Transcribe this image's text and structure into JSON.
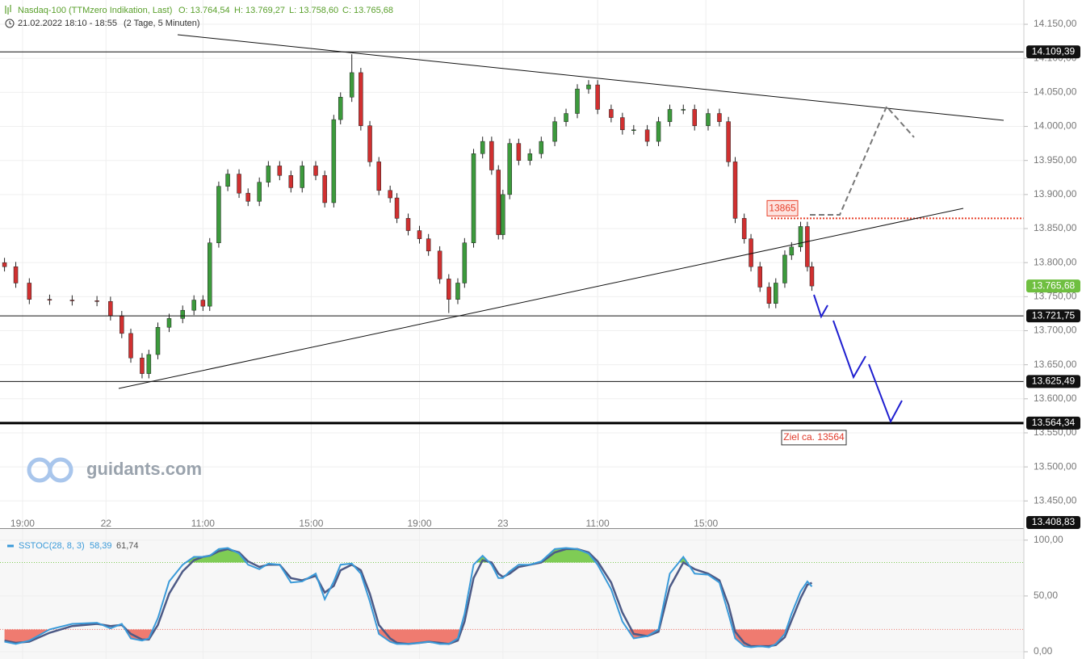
{
  "header": {
    "title": "Nasdaq-100 (TTMzero Indikation, Last)",
    "open": "O: 13.764,54",
    "high": "H: 13.769,27",
    "low": "L: 13.758,60",
    "close": "C: 13.765,68",
    "period": "21.02.2022 18:10 - 18:55",
    "span": "(2 Tage, 5 Minuten)"
  },
  "watermark": "guidants.com",
  "chart_data": [
    {
      "type": "candlestick",
      "up_color": "#3c9a3c",
      "down_color": "#d03030",
      "xlim": [
        0,
        454
      ],
      "ylim": [
        13408.83,
        14185.65
      ],
      "grid": true,
      "xticks": [
        {
          "value": 10,
          "label": "19:00"
        },
        {
          "value": 47,
          "label": "22"
        },
        {
          "value": 90,
          "label": "11:00"
        },
        {
          "value": 138,
          "label": "15:00"
        },
        {
          "value": 186,
          "label": "19:00"
        },
        {
          "value": 223,
          "label": "23"
        },
        {
          "value": 265,
          "label": "11:00"
        },
        {
          "value": 313,
          "label": "15:00"
        }
      ],
      "yticks": [
        {
          "value": 14150,
          "label": "14.150,00"
        },
        {
          "value": 14100,
          "label": "14.100,00"
        },
        {
          "value": 14050,
          "label": "14.050,00"
        },
        {
          "value": 14000,
          "label": "14.000,00"
        },
        {
          "value": 13950,
          "label": "13.950,00"
        },
        {
          "value": 13900,
          "label": "13.900,00"
        },
        {
          "value": 13850,
          "label": "13.850,00"
        },
        {
          "value": 13800,
          "label": "13.800,00"
        },
        {
          "value": 13750,
          "label": "13.750,00"
        },
        {
          "value": 13700,
          "label": "13.700,00"
        },
        {
          "value": 13650,
          "label": "13.650,00"
        },
        {
          "value": 13600,
          "label": "13.600,00"
        },
        {
          "value": 13550,
          "label": "13.550,00"
        },
        {
          "value": 13500,
          "label": "13.500,00"
        },
        {
          "value": 13450,
          "label": "13.450,00"
        }
      ],
      "levels": [
        {
          "value": 14109.39,
          "label": "14.109,39"
        },
        {
          "value": 13721.75,
          "label": "13.721,75"
        },
        {
          "value": 13625.49,
          "label": "13.625,49"
        },
        {
          "value": 13408.83,
          "label": "13.408,83"
        }
      ],
      "target": {
        "value": 13564.34,
        "label": "13.564,34"
      },
      "target_note": "Ziel ca. 13564",
      "last_price": {
        "value": 13765.68,
        "label": "13.765,68"
      },
      "last_color": "#6fbf40",
      "resistance": 13865,
      "resistance_color": "#e8402a",
      "x": [
        2,
        7,
        13,
        22,
        32,
        43,
        49,
        54,
        58,
        63,
        66,
        70,
        75,
        81,
        86,
        90,
        93,
        97,
        101,
        106,
        110,
        115,
        119,
        124,
        129,
        134,
        140,
        144,
        148,
        151,
        156,
        160,
        164,
        168,
        173,
        176,
        181,
        186,
        190,
        195,
        199,
        203,
        206,
        210,
        214,
        218,
        221,
        223,
        226,
        230,
        235,
        240,
        246,
        251,
        256,
        261,
        265,
        271,
        276,
        281,
        287,
        292,
        297,
        303,
        308,
        314,
        319,
        323,
        326,
        330,
        333,
        337,
        341,
        344,
        348,
        351,
        355,
        358,
        360
      ],
      "open": [
        13800,
        13794,
        13770,
        13746,
        13745,
        13744,
        13743,
        13722,
        13696,
        13660,
        13637,
        13665,
        13705,
        13718,
        13730,
        13745,
        13736,
        13829,
        13912,
        13930,
        13902,
        13890,
        13918,
        13942,
        13928,
        13910,
        13942,
        13928,
        13888,
        14010,
        14043,
        14079,
        14001,
        13948,
        13906,
        13895,
        13865,
        13847,
        13835,
        13817,
        13776,
        13746,
        13770,
        13829,
        13960,
        13978,
        13936,
        13841,
        13900,
        13975,
        13950,
        13960,
        13978,
        14007,
        14019,
        14055,
        14061,
        14025,
        14013,
        13995,
        13995,
        13978,
        14007,
        14025,
        14025,
        14001,
        14019,
        14007,
        13948,
        13865,
        13835,
        13794,
        13764,
        13740,
        13770,
        13811,
        13823,
        13853,
        13794
      ],
      "high": [
        13807,
        13801,
        13777,
        13753,
        13752,
        13751,
        13750,
        13729,
        13703,
        13667,
        13672,
        13712,
        13725,
        13737,
        13752,
        13752,
        13836,
        13919,
        13937,
        13937,
        13909,
        13925,
        13949,
        13949,
        13935,
        13949,
        13949,
        13935,
        14017,
        14050,
        14106,
        14086,
        14008,
        13955,
        13913,
        13902,
        13872,
        13854,
        13842,
        13824,
        13783,
        13777,
        13836,
        13967,
        13985,
        13985,
        13943,
        13907,
        13982,
        13982,
        13967,
        13985,
        14014,
        14026,
        14062,
        14068,
        14068,
        14032,
        14020,
        14002,
        14002,
        14014,
        14032,
        14032,
        14032,
        14026,
        14026,
        14014,
        13955,
        13872,
        13842,
        13801,
        13771,
        13777,
        13818,
        13830,
        13860,
        13860,
        13801
      ],
      "low": [
        13787,
        13763,
        13739,
        13738,
        13737,
        13736,
        13715,
        13689,
        13653,
        13630,
        13630,
        13658,
        13698,
        13711,
        13723,
        13729,
        13729,
        13822,
        13905,
        13895,
        13883,
        13883,
        13911,
        13921,
        13903,
        13903,
        13921,
        13881,
        13881,
        14003,
        14036,
        13994,
        13941,
        13899,
        13888,
        13858,
        13840,
        13828,
        13810,
        13769,
        13726,
        13739,
        13763,
        13822,
        13953,
        13929,
        13834,
        13834,
        13893,
        13943,
        13943,
        13953,
        13971,
        14000,
        14012,
        14048,
        14018,
        14006,
        13988,
        13988,
        13971,
        13971,
        14000,
        14018,
        13994,
        13994,
        14000,
        13941,
        13858,
        13828,
        13787,
        13757,
        13733,
        13733,
        13763,
        13804,
        13816,
        13787,
        13758.6
      ],
      "close": [
        13794,
        13770,
        13746,
        13745,
        13744,
        13743,
        13722,
        13696,
        13660,
        13637,
        13665,
        13705,
        13718,
        13730,
        13745,
        13736,
        13829,
        13912,
        13930,
        13902,
        13890,
        13918,
        13942,
        13928,
        13910,
        13942,
        13928,
        13888,
        14010,
        14043,
        14079,
        14001,
        13948,
        13906,
        13895,
        13865,
        13847,
        13835,
        13817,
        13776,
        13746,
        13770,
        13829,
        13960,
        13978,
        13936,
        13841,
        13900,
        13975,
        13950,
        13960,
        13978,
        14007,
        14019,
        14055,
        14061,
        14025,
        14013,
        13995,
        13995,
        13978,
        14007,
        14025,
        14025,
        14001,
        14019,
        14007,
        13948,
        13865,
        13835,
        13794,
        13764,
        13740,
        13770,
        13811,
        13823,
        13853,
        13794,
        13765.68
      ]
    },
    {
      "type": "line",
      "title": "SSTOC(28, 8, 3)",
      "xlim": [
        0,
        454
      ],
      "ylim": [
        -6.5,
        110
      ],
      "yticks": [
        {
          "value": 100,
          "label": "100,00"
        },
        {
          "value": 50,
          "label": "50,00"
        },
        {
          "value": 0,
          "label": "0,00"
        }
      ],
      "overbought": 80,
      "oversold": 20,
      "overbought_color": "#7fcc55",
      "oversold_color": "#ef7b70",
      "x": [
        2,
        7,
        13,
        22,
        32,
        43,
        49,
        54,
        58,
        63,
        66,
        70,
        75,
        81,
        86,
        90,
        93,
        97,
        101,
        106,
        110,
        115,
        119,
        124,
        129,
        134,
        140,
        144,
        148,
        151,
        156,
        160,
        164,
        168,
        173,
        176,
        181,
        186,
        190,
        195,
        199,
        203,
        206,
        210,
        214,
        218,
        221,
        223,
        226,
        230,
        235,
        240,
        246,
        251,
        256,
        261,
        265,
        271,
        276,
        281,
        287,
        292,
        297,
        303,
        308,
        314,
        319,
        323,
        326,
        330,
        333,
        337,
        341,
        344,
        348,
        351,
        355,
        358,
        360
      ],
      "series": [
        {
          "color": "#3a9ad9",
          "value_label": "58,39",
          "values": [
            9,
            7,
            10,
            20,
            25,
            26,
            21,
            25,
            12,
            10,
            12,
            30,
            63,
            78,
            85,
            85,
            86,
            92,
            93,
            88,
            78,
            74,
            79,
            78,
            62,
            63,
            70,
            47,
            63,
            78,
            79,
            70,
            45,
            16,
            9,
            7,
            7,
            8,
            9,
            7,
            7,
            12,
            34,
            78,
            86,
            78,
            66,
            66,
            72,
            78,
            78,
            81,
            92,
            93,
            92,
            88,
            78,
            56,
            27,
            12,
            14,
            20,
            70,
            85,
            70,
            69,
            62,
            34,
            12,
            5,
            4,
            5,
            4,
            7,
            16,
            34,
            54,
            63,
            58.39
          ]
        },
        {
          "color": "#4d5a86",
          "value_label": "61,74",
          "values": [
            10,
            8,
            9,
            17,
            23,
            25,
            23,
            24,
            16,
            11,
            11,
            24,
            52,
            72,
            82,
            85,
            86,
            90,
            92,
            89,
            81,
            76,
            78,
            78,
            66,
            64,
            68,
            53,
            59,
            73,
            78,
            73,
            52,
            24,
            12,
            8,
            7,
            8,
            9,
            8,
            7,
            10,
            27,
            66,
            82,
            80,
            70,
            67,
            70,
            76,
            78,
            80,
            89,
            92,
            92,
            89,
            81,
            62,
            35,
            16,
            14,
            18,
            58,
            80,
            74,
            70,
            64,
            42,
            18,
            8,
            5,
            5,
            5,
            6,
            13,
            28,
            48,
            60,
            61.74
          ]
        }
      ]
    }
  ]
}
